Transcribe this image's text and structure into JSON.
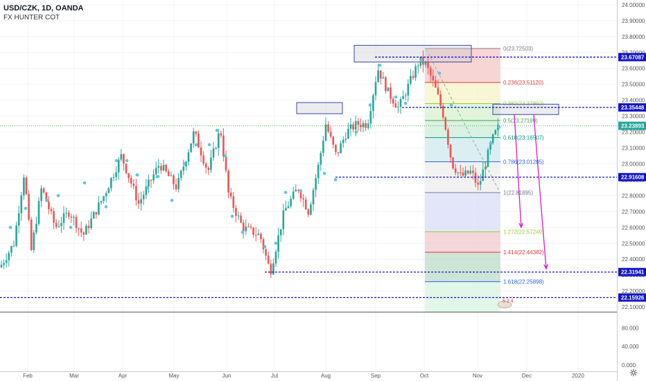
{
  "header": {
    "symbol_line": "USD/CZK, 1D, OANDA",
    "indicator": "FX HUNTER COT"
  },
  "colors": {
    "up_candle": "#26a69a",
    "down_candle": "#ef5350",
    "level_line": "#1414c8",
    "current_price_line": "#4caf50",
    "axis_text": "#555555",
    "cyan_dot": "#5bc8dc",
    "magenta_arrow": "#d41bd4"
  },
  "price_axis": {
    "ticks": [
      "24.00000",
      "23.90000",
      "23.80000",
      "23.70000",
      "23.60000",
      "23.50000",
      "23.40000",
      "23.30000",
      "23.20000",
      "23.10000",
      "23.00000",
      "22.90000",
      "22.80000",
      "22.70000",
      "22.60000",
      "22.50000",
      "22.40000",
      "22.30000",
      "22.20000",
      "22.10000"
    ],
    "tags": [
      {
        "label": "23.67087",
        "color": "#1414c8",
        "value": 23.67087
      },
      {
        "label": "23.35448",
        "color": "#1414c8",
        "value": 23.35448
      },
      {
        "label": "23.23893",
        "color": "#26a69a",
        "value": 23.23893
      },
      {
        "label": "22.91608",
        "color": "#1414c8",
        "value": 22.91608
      },
      {
        "label": "22.31941",
        "color": "#1414c8",
        "value": 22.31941
      },
      {
        "label": "22.15926",
        "color": "#1414c8",
        "value": 22.15926
      }
    ]
  },
  "indicator_axis": {
    "ticks": [
      "80.000",
      "40.000",
      "0.000"
    ]
  },
  "time_axis": {
    "labels": [
      "Feb",
      "Mar",
      "Apr",
      "May",
      "Jun",
      "Jul",
      "Aug",
      "Sep",
      "Oct",
      "Nov",
      "Dec",
      "2020"
    ]
  },
  "fib": {
    "levels": [
      {
        "label": "0(23.72503)",
        "value": 23.72503,
        "color": "#787b86"
      },
      {
        "label": "0.236(23.51120)",
        "value": 23.5112,
        "color": "#e53935"
      },
      {
        "label": "0.382(23.37892)",
        "value": 23.37892,
        "color": "#9acd32"
      },
      {
        "label": "0.5(23.27199)",
        "value": 23.27199,
        "color": "#43a047"
      },
      {
        "label": "0.618(23.16507)",
        "value": 23.16507,
        "color": "#009688"
      },
      {
        "label": "0.786(23.01285)",
        "value": 23.01285,
        "color": "#2962ff"
      },
      {
        "label": "1(22.81895)",
        "value": 22.81895,
        "color": "#787b86"
      },
      {
        "label": "1.272(22.57249)",
        "value": 22.57249,
        "color": "#9acd32"
      },
      {
        "label": "1.414(22.44382)",
        "value": 22.44382,
        "color": "#e53935"
      },
      {
        "label": "1.618(22.25898)",
        "value": 22.25898,
        "color": "#2962ff"
      }
    ]
  },
  "badge": {
    "label": "5 2 4"
  },
  "chart_data": {
    "type": "candlestick",
    "title": "USD/CZK, 1D, OANDA",
    "ylim": [
      22.07,
      24.03
    ],
    "x_labels": [
      "Feb",
      "Mar",
      "Apr",
      "May",
      "Jun",
      "Jul",
      "Aug",
      "Sep",
      "Oct",
      "Nov",
      "Dec",
      "2020"
    ],
    "last_price": 23.23893,
    "horizontal_levels": [
      23.67087,
      23.35448,
      22.91608,
      22.31941,
      22.15926
    ],
    "approx_closes_by_month": [
      {
        "month": "Jan",
        "close": 22.5
      },
      {
        "month": "Feb",
        "close": 22.85
      },
      {
        "month": "Mar",
        "close": 22.65
      },
      {
        "month": "Apr",
        "close": 22.9
      },
      {
        "month": "May",
        "close": 23.1
      },
      {
        "month": "Jun",
        "close": 22.45
      },
      {
        "month": "Jul",
        "close": 22.75
      },
      {
        "month": "Aug",
        "close": 23.2
      },
      {
        "month": "Sep",
        "close": 23.55
      },
      {
        "month": "Oct",
        "close": 22.95
      },
      {
        "month": "Nov",
        "close": 23.24
      }
    ],
    "indicator_ylim": [
      0,
      100
    ]
  }
}
